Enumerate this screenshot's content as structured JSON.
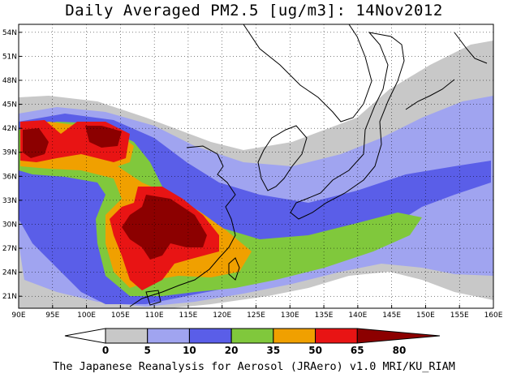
{
  "title": "Daily Averaged PM2.5 [ug/m3]: 14Nov2012",
  "credit": "The Japanese Reanalysis for Aerosol (JRAero) v1.0 MRI/KU_RIAM",
  "map": {
    "lon_range": [
      90,
      160
    ],
    "lat_range": [
      19.5,
      55
    ],
    "lon_ticks": [
      "90E",
      "95E",
      "100E",
      "105E",
      "110E",
      "115E",
      "120E",
      "125E",
      "130E",
      "135E",
      "140E",
      "145E",
      "150E",
      "155E",
      "160E"
    ],
    "lat_ticks": [
      "21N",
      "24N",
      "27N",
      "30N",
      "33N",
      "36N",
      "39N",
      "42N",
      "45N",
      "48N",
      "51N",
      "54N"
    ],
    "lat_tick_values": [
      21,
      24,
      27,
      30,
      33,
      36,
      39,
      42,
      45,
      48,
      51,
      54
    ],
    "lon_tick_values": [
      90,
      95,
      100,
      105,
      110,
      115,
      120,
      125,
      130,
      135,
      140,
      145,
      150,
      155,
      160
    ],
    "grid": "dotted"
  },
  "colorbar": {
    "levels": [
      "0",
      "5",
      "10",
      "20",
      "35",
      "50",
      "65",
      "80"
    ],
    "colors": [
      "#ffffff",
      "#c8c8c8",
      "#a0a4f0",
      "#5a5ee8",
      "#80c83c",
      "#f0a000",
      "#e81414",
      "#8c0000"
    ],
    "low_color": "#ffffff",
    "high_color": "#8c0000"
  },
  "bands": {
    "gray": "#c8c8c8",
    "lightblue": "#a0a4f0",
    "blue": "#5a5ee8",
    "green": "#80c83c",
    "orange": "#f0a000",
    "red": "#e81414",
    "darkred": "#8c0000"
  }
}
